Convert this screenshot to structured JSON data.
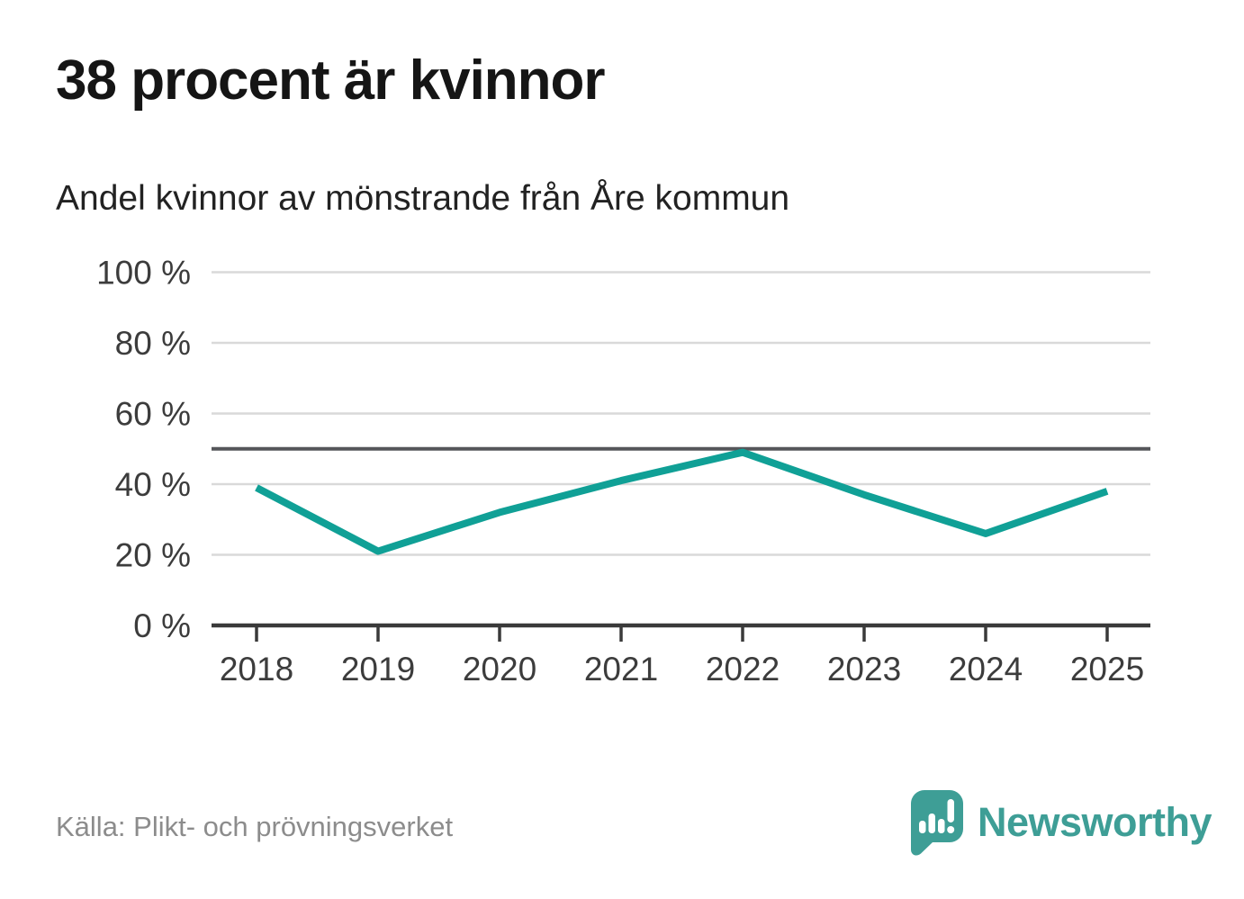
{
  "header": {
    "title": "38 procent är kvinnor",
    "subtitle": "Andel kvinnor av mönstrande från Åre kommun"
  },
  "footer": {
    "source": "Källa: Plikt- och prövningsverket",
    "brand": "Newsworthy"
  },
  "colors": {
    "line": "#10A096",
    "reference_line": "#55565A",
    "grid": "#D9D9D9",
    "axis": "#3A3A3A",
    "tick_label": "#3C3C3C",
    "source_text": "#8C8C8C",
    "brand": "#3E9E96"
  },
  "chart_data": {
    "type": "line",
    "title": "Andel kvinnor av mönstrande från Åre kommun",
    "x": [
      2018,
      2019,
      2020,
      2021,
      2022,
      2023,
      2024,
      2025
    ],
    "series": [
      {
        "name": "Andel kvinnor av mönstrande",
        "values": [
          39,
          21,
          32,
          41,
          49,
          37,
          26,
          38
        ]
      }
    ],
    "unit": "%",
    "ylim": [
      0,
      100
    ],
    "yticks": [
      {
        "value": 0,
        "label": "0 %"
      },
      {
        "value": 20,
        "label": "20 %"
      },
      {
        "value": 40,
        "label": "40 %"
      },
      {
        "value": 60,
        "label": "60 %"
      },
      {
        "value": 80,
        "label": "80 %"
      },
      {
        "value": 100,
        "label": "100 %"
      }
    ],
    "reference_line": {
      "value": 50
    },
    "grid": true,
    "legend": false
  }
}
